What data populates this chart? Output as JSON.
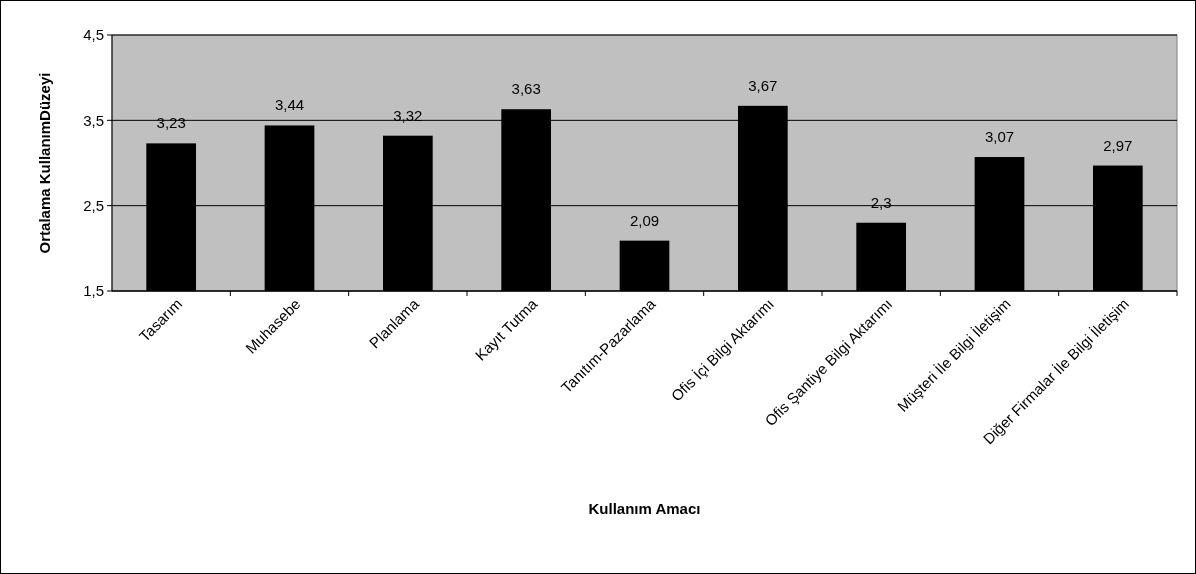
{
  "chart_data": {
    "type": "bar",
    "xlabel": "Kullanım Amacı",
    "ylabel": "Ortalama KullanımDüzeyi",
    "categories": [
      "Tasarım",
      "Muhasebe",
      "Planlama",
      "Kayıt Tutma",
      "Tanıtım-Pazarlama",
      "Ofis İçi Bilgi Aktarımı",
      "Ofis Şantiye Bilgi Aktarımı",
      "Müşteri İle Bilgi İletişim",
      "Diğer Firmalar İle Bilgi İletişim"
    ],
    "values": [
      3.23,
      3.44,
      3.32,
      3.63,
      2.09,
      3.67,
      2.3,
      3.07,
      2.97
    ],
    "value_labels": [
      "3,23",
      "3,44",
      "3,32",
      "3,63",
      "2,09",
      "3,67",
      "2,3",
      "3,07",
      "2,97"
    ],
    "color": "#000000",
    "ylim": [
      1.5,
      4.5
    ],
    "yticks": [
      {
        "value": 1.5,
        "label": "1,5"
      },
      {
        "value": 2.5,
        "label": "2,5"
      },
      {
        "value": 3.5,
        "label": "3,5"
      },
      {
        "value": 4.5,
        "label": "4,5"
      }
    ],
    "grid": "y"
  }
}
